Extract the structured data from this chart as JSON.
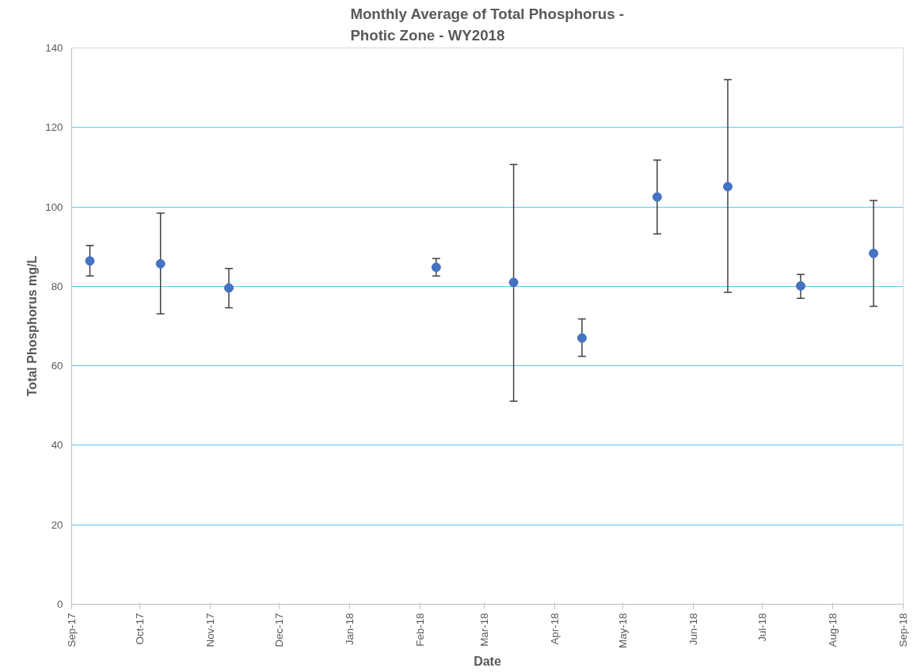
{
  "chart_data": {
    "type": "scatter",
    "title": "Monthly Average of Total Phosphorus -\nPhotic Zone - WY2018",
    "xlabel": "Date",
    "ylabel": "Total Phosphorus mg/L",
    "x": [
      "2017-09-09",
      "2017-10-10",
      "2017-11-09",
      "2018-02-08",
      "2018-03-14",
      "2018-04-13",
      "2018-05-16",
      "2018-06-16",
      "2018-07-18",
      "2018-08-19"
    ],
    "series": [
      {
        "color": "#4472c4",
        "values": [
          86.4,
          85.7,
          79.6,
          84.8,
          81.0,
          67.0,
          102.5,
          105.1,
          80.1,
          88.3
        ],
        "errors": [
          [
            82.6,
            90.3
          ],
          [
            73.1,
            98.4
          ],
          [
            74.6,
            84.5
          ],
          [
            82.6,
            87.0
          ],
          [
            51.1,
            110.7
          ],
          [
            62.4,
            71.8
          ],
          [
            93.2,
            111.8
          ],
          [
            78.5,
            132.0
          ],
          [
            77.0,
            83.0
          ],
          [
            75.0,
            101.6
          ]
        ]
      }
    ],
    "xlim": [
      "2017-09-01",
      "2018-09-01"
    ],
    "xticks": [
      {
        "value": "2017-09-01",
        "label": "Sep-17"
      },
      {
        "value": "2017-10-01",
        "label": "Oct-17"
      },
      {
        "value": "2017-11-01",
        "label": "Nov-17"
      },
      {
        "value": "2017-12-01",
        "label": "Dec-17"
      },
      {
        "value": "2018-01-01",
        "label": "Jan-18"
      },
      {
        "value": "2018-02-01",
        "label": "Feb-18"
      },
      {
        "value": "2018-03-01",
        "label": "Mar-18"
      },
      {
        "value": "2018-04-01",
        "label": "Apr-18"
      },
      {
        "value": "2018-05-01",
        "label": "May-18"
      },
      {
        "value": "2018-06-01",
        "label": "Jun-18"
      },
      {
        "value": "2018-07-01",
        "label": "Jul-18"
      },
      {
        "value": "2018-08-01",
        "label": "Aug-18"
      },
      {
        "value": "2018-09-01",
        "label": "Sep-18"
      }
    ],
    "ylim": [
      0,
      140
    ],
    "yticks": [
      0,
      20,
      40,
      60,
      80,
      100,
      120,
      140
    ],
    "grid": "y",
    "marker": "circle"
  }
}
